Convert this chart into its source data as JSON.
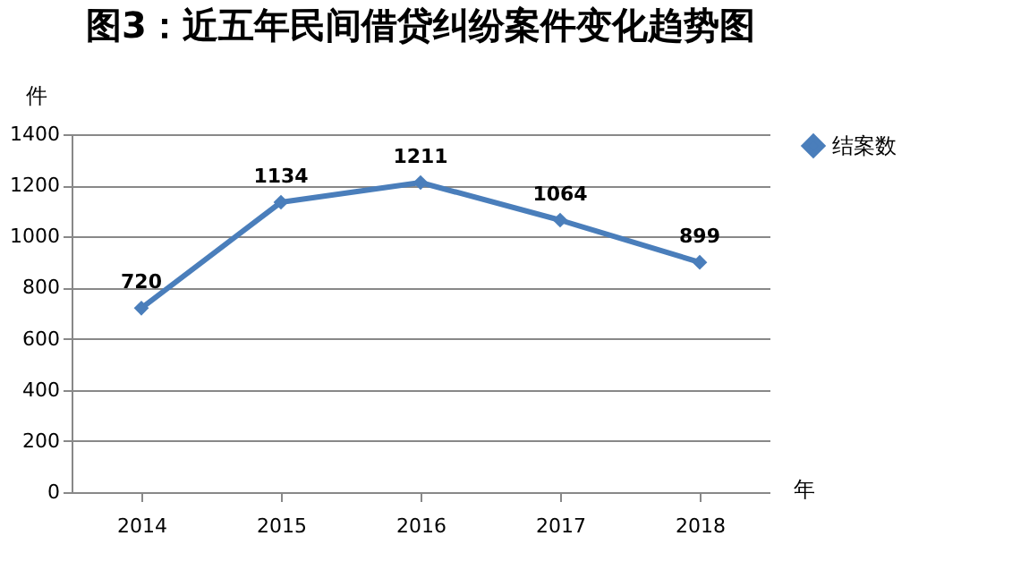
{
  "chart_data": {
    "type": "line",
    "title": "图3：近五年民间借贷纠纷案件变化趋势图",
    "ylabel": "件",
    "xlabel": "年",
    "categories": [
      "2014",
      "2015",
      "2016",
      "2017",
      "2018"
    ],
    "series": [
      {
        "name": "结案数",
        "color": "#4a7ebb",
        "values": [
          720,
          1134,
          1211,
          1064,
          899
        ]
      }
    ],
    "ylim": [
      0,
      1400
    ],
    "yticks": [
      0,
      200,
      400,
      600,
      800,
      1000,
      1200,
      1400
    ],
    "grid": "y",
    "legend": "right",
    "marker": "diamond",
    "line_style": "solid",
    "data_labels": true
  }
}
